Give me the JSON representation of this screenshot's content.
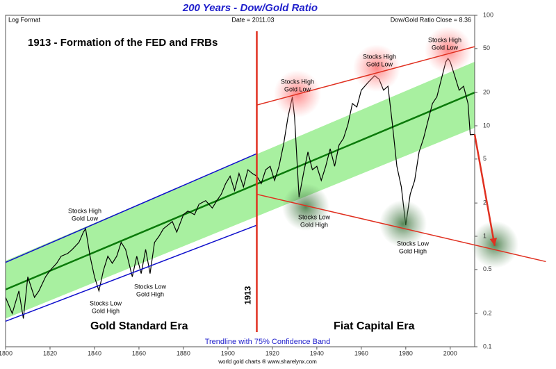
{
  "chart_data": {
    "type": "line",
    "title": "200 Years - Dow/Gold Ratio",
    "scale_label": "Log Format",
    "date_label": "Date = 2011.03",
    "close_label": "Dow/Gold Ratio Close = 8.36",
    "headline": "1913 - Formation of the FED and FRBs",
    "event_year": 1913,
    "eras": [
      "Gold Standard Era",
      "Fiat Capital Era"
    ],
    "band_label": "Trendline with 75% Confidence Band",
    "credit": "world gold charts ® www.sharelynx.com",
    "annotations": [
      [
        "Stocks High",
        "Gold Low"
      ],
      [
        "Stocks High",
        "Gold Low"
      ],
      [
        "Stocks High",
        "Gold Low"
      ],
      [
        "Stocks High",
        "Gold Low"
      ],
      [
        "Stocks Low",
        "Gold High"
      ],
      [
        "Stocks Low",
        "Gold High"
      ],
      [
        "Stocks Low",
        "Gold High"
      ],
      [
        "Stocks Low",
        "Gold High"
      ]
    ],
    "log_y": true,
    "color": "#000000",
    "x": [
      1800,
      1803,
      1806,
      1808,
      1810,
      1813,
      1815,
      1818,
      1820,
      1823,
      1825,
      1828,
      1830,
      1833,
      1835,
      1836,
      1838,
      1840,
      1842,
      1844,
      1846,
      1848,
      1850,
      1852,
      1854,
      1857,
      1859,
      1861,
      1863,
      1865,
      1867,
      1869,
      1871,
      1873,
      1875,
      1877,
      1880,
      1882,
      1885,
      1887,
      1890,
      1893,
      1895,
      1897,
      1899,
      1901,
      1903,
      1905,
      1907,
      1909,
      1911,
      1913,
      1915,
      1917,
      1919,
      1921,
      1923,
      1925,
      1927,
      1929,
      1930,
      1932,
      1934,
      1936,
      1938,
      1940,
      1942,
      1944,
      1946,
      1948,
      1950,
      1952,
      1954,
      1956,
      1958,
      1960,
      1963,
      1966,
      1968,
      1970,
      1972,
      1974,
      1976,
      1978,
      1980,
      1982,
      1984,
      1986,
      1988,
      1990,
      1992,
      1994,
      1996,
      1998,
      1999,
      2000,
      2002,
      2004,
      2006,
      2008,
      2009,
      2011
    ],
    "values": [
      0.28,
      0.2,
      0.32,
      0.18,
      0.43,
      0.28,
      0.32,
      0.43,
      0.49,
      0.57,
      0.66,
      0.7,
      0.76,
      0.88,
      1.09,
      1.17,
      0.66,
      0.43,
      0.32,
      0.49,
      0.66,
      0.57,
      0.66,
      0.88,
      0.76,
      0.43,
      0.66,
      0.46,
      0.76,
      0.46,
      0.88,
      1.0,
      1.17,
      1.26,
      1.36,
      1.09,
      1.57,
      1.69,
      1.57,
      1.95,
      2.1,
      1.8,
      2.1,
      2.4,
      3.0,
      3.5,
      2.6,
      3.7,
      2.8,
      4.0,
      3.7,
      3.5,
      3.0,
      4.0,
      4.3,
      3.2,
      4.3,
      6.7,
      11.9,
      18.3,
      11.9,
      2.25,
      3.7,
      5.8,
      4.0,
      4.3,
      3.2,
      4.3,
      6.2,
      4.3,
      6.7,
      7.7,
      10.3,
      15.9,
      14.8,
      21,
      24.6,
      28.4,
      26.4,
      21,
      22.8,
      10.3,
      4.3,
      2.8,
      1.26,
      2.4,
      3.2,
      5.8,
      7.7,
      11.1,
      15.9,
      18.3,
      26.4,
      37.9,
      40.7,
      37.9,
      28.4,
      21,
      22.8,
      15.9,
      8.3,
      8.36
    ],
    "trendline": {
      "color": "#0a7a0a",
      "x": [
        1800,
        2011
      ],
      "values": [
        0.33,
        20
      ]
    },
    "band": {
      "color": "#a8f0a0",
      "x": [
        1800,
        2011
      ],
      "upper": [
        0.6,
        38
      ],
      "lower": [
        0.18,
        9.6
      ]
    },
    "channels": [
      {
        "color": "#1010cc",
        "x": [
          1800,
          1913
        ],
        "values": [
          0.58,
          5.6
        ]
      },
      {
        "color": "#1010cc",
        "x": [
          1800,
          1913
        ],
        "values": [
          0.17,
          1.26
        ]
      },
      {
        "color": "#e03020",
        "x": [
          1913,
          2011
        ],
        "values": [
          15.4,
          52
        ]
      },
      {
        "color": "#e03020",
        "x": [
          1913,
          2043
        ],
        "values": [
          2.4,
          0.59
        ]
      }
    ],
    "arrow": {
      "color": "#e03020",
      "x": [
        2011,
        2020
      ],
      "values": [
        8.36,
        0.82
      ]
    },
    "xlim": [
      1800,
      2011
    ],
    "ylim": [
      0.1,
      100
    ],
    "xticks": [
      1800,
      1820,
      1840,
      1860,
      1880,
      1900,
      1920,
      1940,
      1960,
      1980,
      2000
    ],
    "yticks": [
      100,
      50,
      20,
      10,
      5,
      2,
      1,
      0.5,
      0.2,
      0.1
    ]
  }
}
